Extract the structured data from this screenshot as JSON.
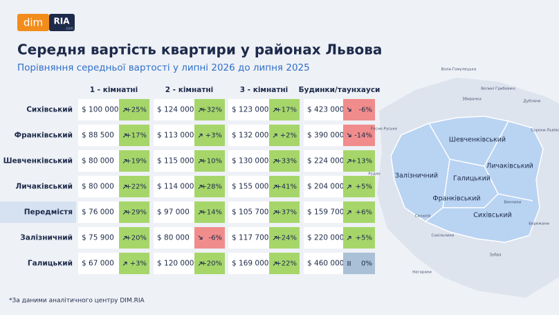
{
  "logo": {
    "left": "dim",
    "right": "RIA",
    "sub": ".com"
  },
  "title": "Середня вартість квартири у районах Львова",
  "subtitle": "Порівняння середньої вартості у липні 2026 до липня 2025",
  "table": {
    "columns": [
      "1 - кімнатні",
      "2 - кімнатні",
      "3 - кімнатні",
      "Будинки/таунхауси"
    ],
    "rows": [
      {
        "district": "Сихівський",
        "cells": [
          {
            "price": "$ 100 000",
            "change": "+25%",
            "color": "#a6d66a"
          },
          {
            "price": "$ 124 000",
            "change": "+32%",
            "color": "#a6d66a"
          },
          {
            "price": "$ 123 000",
            "change": "+17%",
            "color": "#a6d66a"
          },
          {
            "price": "$ 423 000",
            "change": "-6%",
            "color": "#f08c8c"
          }
        ]
      },
      {
        "district": "Франківський",
        "cells": [
          {
            "price": "$ 88 500",
            "change": "+17%",
            "color": "#a6d66a"
          },
          {
            "price": "$ 113 000",
            "change": "+3%",
            "color": "#a6d66a"
          },
          {
            "price": "$ 132 000",
            "change": "+2%",
            "color": "#a6d66a"
          },
          {
            "price": "$ 390 000",
            "change": "-14%",
            "color": "#f08c8c"
          }
        ]
      },
      {
        "district": "Шевченківський",
        "cells": [
          {
            "price": "$ 80 000",
            "change": "+19%",
            "color": "#a6d66a"
          },
          {
            "price": "$ 115 000",
            "change": "+10%",
            "color": "#a6d66a"
          },
          {
            "price": "$ 130 000",
            "change": "+33%",
            "color": "#a6d66a"
          },
          {
            "price": "$ 224 000",
            "change": "+13%",
            "color": "#a6d66a"
          }
        ]
      },
      {
        "district": "Личаківський",
        "cells": [
          {
            "price": "$ 80 000",
            "change": "+22%",
            "color": "#a6d66a"
          },
          {
            "price": "$ 114 000",
            "change": "+28%",
            "color": "#a6d66a"
          },
          {
            "price": "$ 155 000",
            "change": "+41%",
            "color": "#a6d66a"
          },
          {
            "price": "$ 204 000",
            "change": "+5%",
            "color": "#a6d66a"
          }
        ]
      },
      {
        "district": "Передмістя",
        "cells": [
          {
            "price": "$ 76 000",
            "change": "+29%",
            "color": "#a6d66a"
          },
          {
            "price": "$ 97 000",
            "change": "+14%",
            "color": "#a6d66a"
          },
          {
            "price": "$ 105 700",
            "change": "+37%",
            "color": "#a6d66a"
          },
          {
            "price": "$ 159 700",
            "change": "+6%",
            "color": "#a6d66a"
          }
        ]
      },
      {
        "district": "Залізничний",
        "cells": [
          {
            "price": "$ 75 900",
            "change": "+20%",
            "color": "#a6d66a"
          },
          {
            "price": "$ 80 000",
            "change": "-6%",
            "color": "#f08c8c"
          },
          {
            "price": "$ 117 700",
            "change": "+24%",
            "color": "#a6d66a"
          },
          {
            "price": "$ 220 000",
            "change": "+5%",
            "color": "#a6d66a"
          }
        ]
      },
      {
        "district": "Галицький",
        "cells": [
          {
            "price": "$ 67 000",
            "change": "+3%",
            "color": "#a6d66a"
          },
          {
            "price": "$ 120 000",
            "change": "+20%",
            "color": "#a6d66a"
          },
          {
            "price": "$ 169 000",
            "change": "+22%",
            "color": "#a6d66a"
          },
          {
            "price": "$ 460 000",
            "change": "0%",
            "color": "#aac0d6"
          }
        ]
      }
    ]
  },
  "map": {
    "districts": [
      "Шевченківський",
      "Личаківський",
      "Залізничний",
      "Галицький",
      "Франківський",
      "Сихівський"
    ],
    "places": [
      "Воля-Гомулецька",
      "Великі Грибовичі",
      "Збиранка",
      "Дубляни",
      "Сороки-Львівські",
      "Рясне-Руське",
      "Рудно",
      "Скнилів",
      "Сокільники",
      "Винники",
      "Бережани",
      "Зубра",
      "Нагоряни"
    ]
  },
  "footnote": "*За даними аналітичного центру DIM.RIA"
}
